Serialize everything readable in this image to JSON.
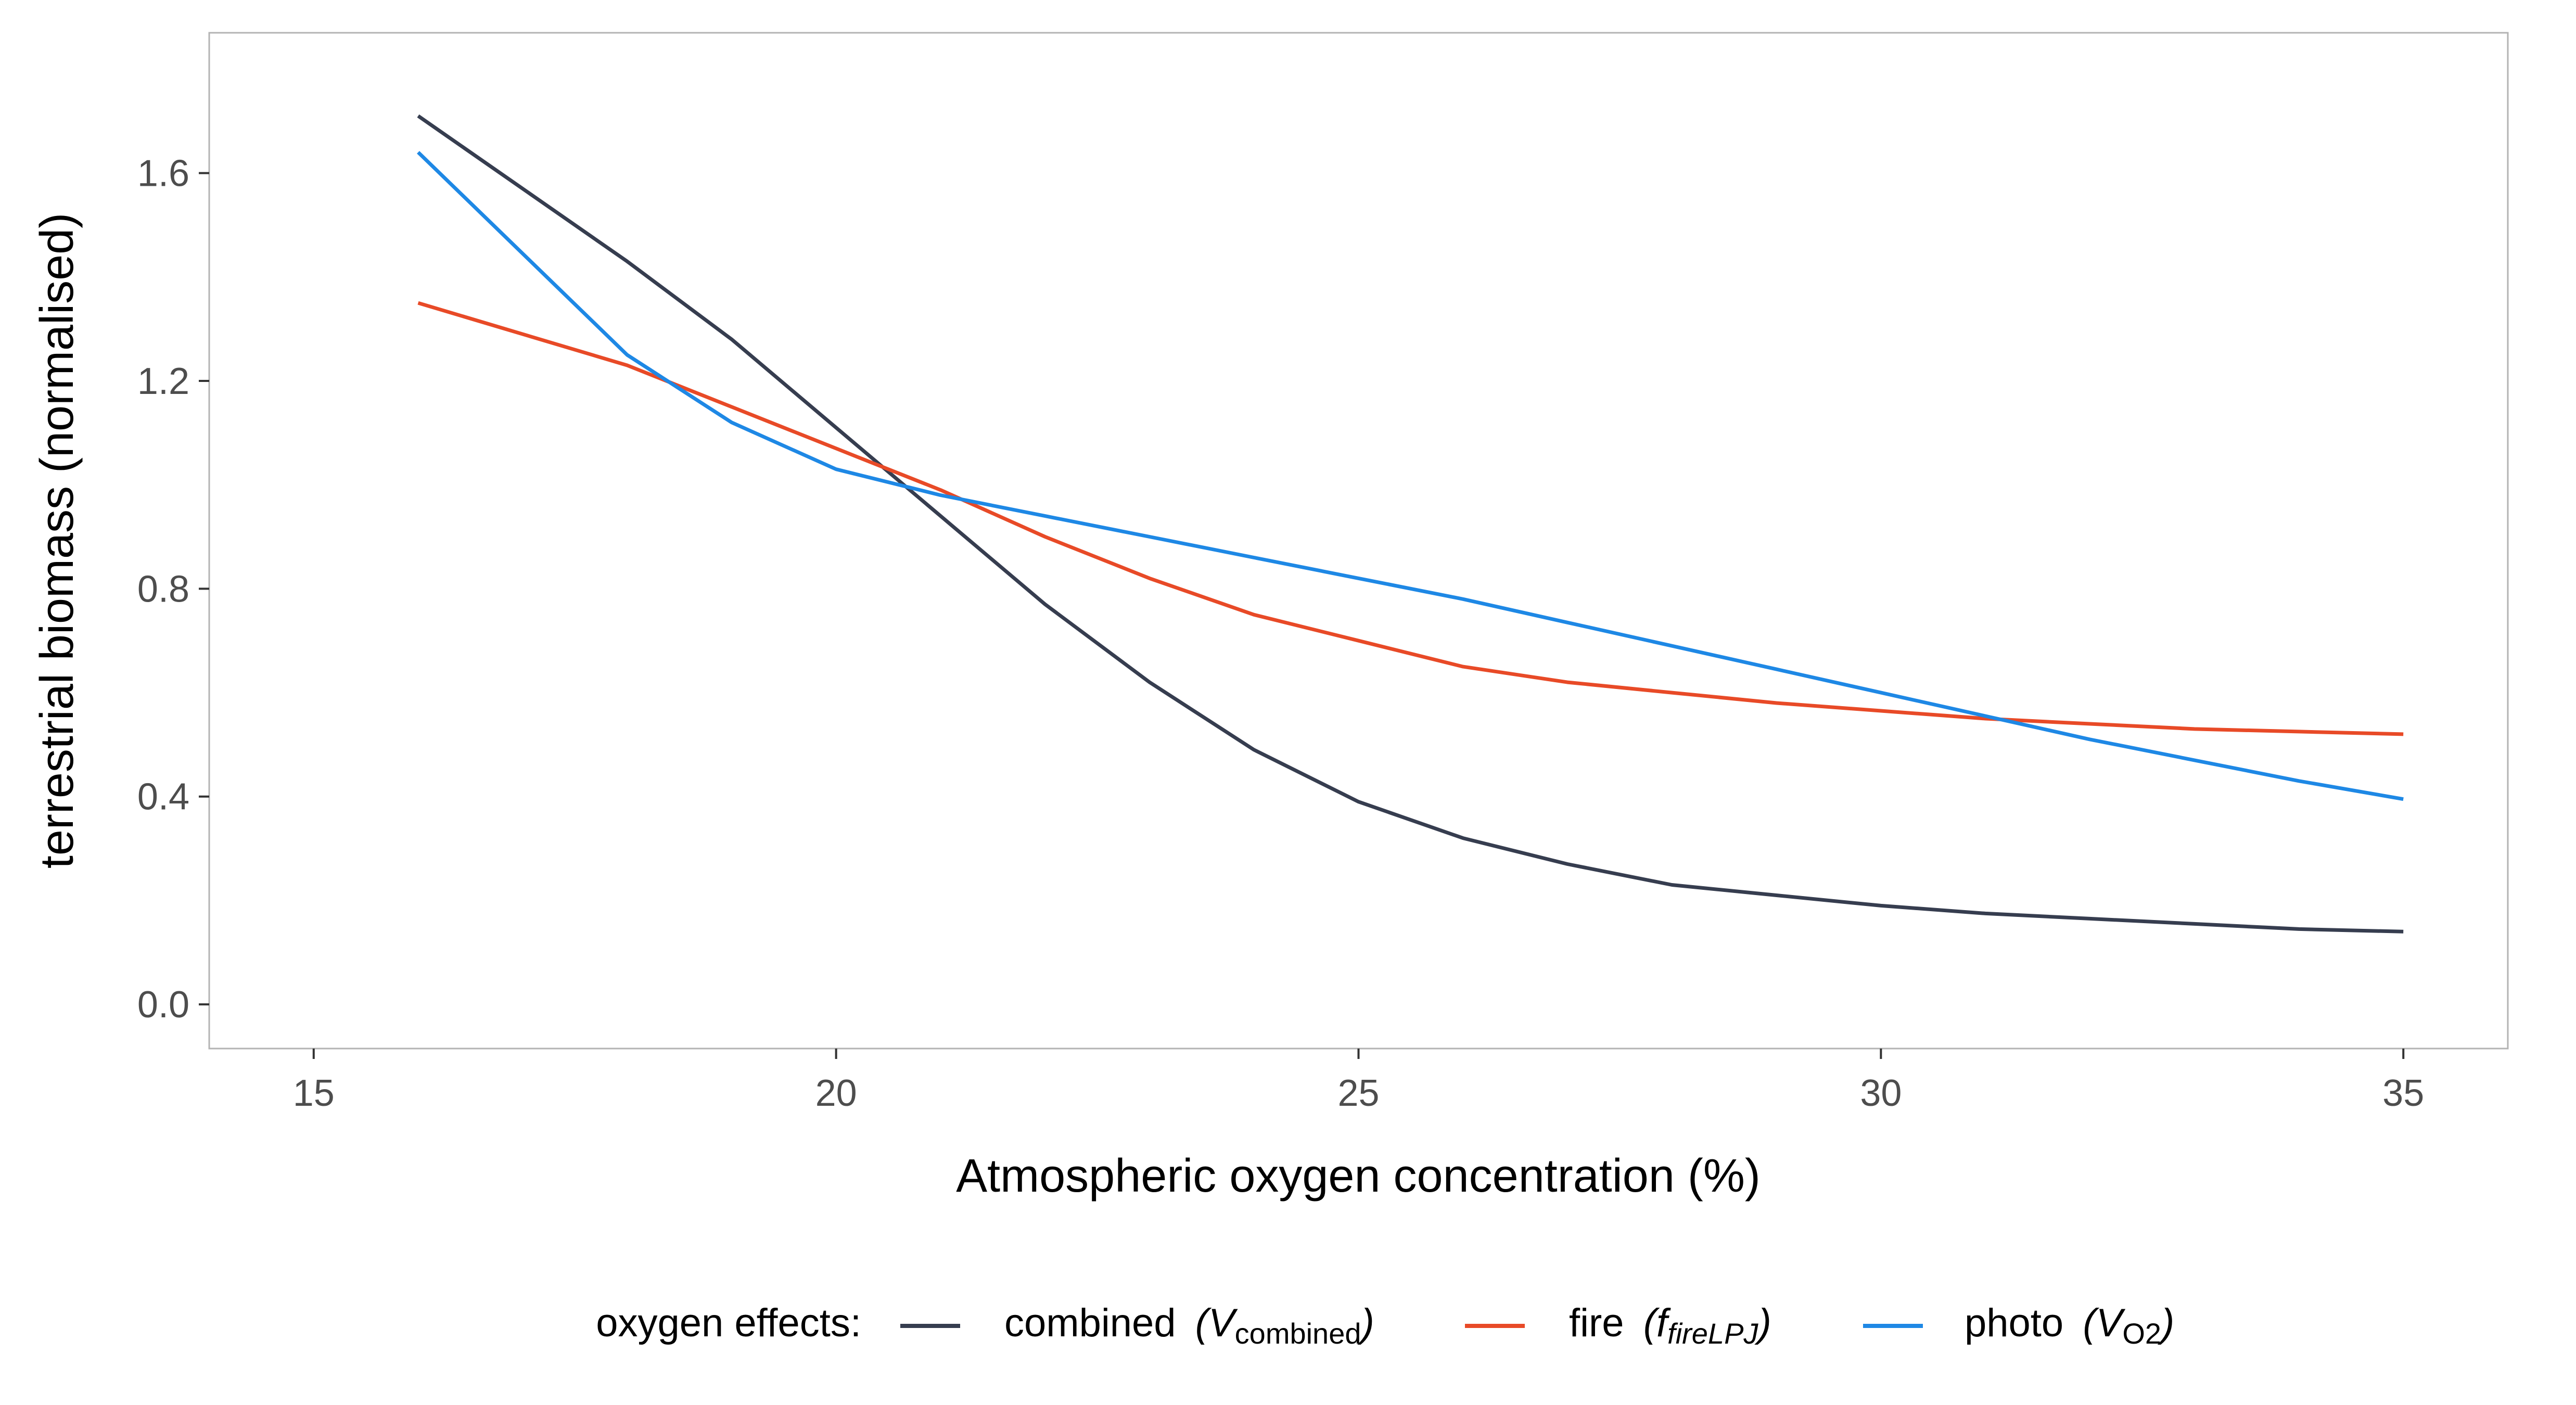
{
  "chart_data": {
    "type": "line",
    "xlabel": "Atmospheric oxygen concentration (%)",
    "ylabel": "terrestrial biomass (normalised)",
    "xlim": [
      14,
      36
    ],
    "ylim": [
      -0.085,
      1.87
    ],
    "x_ticks": [
      15,
      20,
      25,
      30,
      35
    ],
    "x_tick_labels": [
      "15",
      "20",
      "25",
      "30",
      "35"
    ],
    "y_ticks": [
      0,
      0.4,
      0.8,
      1.2,
      1.6
    ],
    "y_tick_labels": [
      "0.0",
      "0.4",
      "0.8",
      "1.2",
      "1.6"
    ],
    "grid": false,
    "legend_placement": "bottom",
    "legend_title": "oxygen effects:",
    "series": [
      {
        "name": "combined",
        "symbol": "V",
        "subscript": "combined",
        "color": "#363d4f",
        "x": [
          16,
          18,
          19,
          20,
          21,
          22,
          23,
          24,
          25,
          26,
          27,
          28,
          29,
          30,
          31,
          32,
          33,
          34,
          35
        ],
        "y": [
          1.71,
          1.43,
          1.28,
          1.11,
          0.94,
          0.77,
          0.62,
          0.49,
          0.39,
          0.32,
          0.27,
          0.23,
          0.21,
          0.19,
          0.175,
          0.165,
          0.155,
          0.145,
          0.14
        ]
      },
      {
        "name": "fire",
        "symbol": "f",
        "subscript": "fireLPJ",
        "color": "#e84a27",
        "x": [
          16,
          18,
          19,
          20,
          21,
          22,
          23,
          24,
          25,
          26,
          27,
          28,
          29,
          30,
          31,
          32,
          33,
          34,
          35
        ],
        "y": [
          1.35,
          1.23,
          1.15,
          1.07,
          0.99,
          0.9,
          0.82,
          0.75,
          0.7,
          0.65,
          0.62,
          0.6,
          0.58,
          0.565,
          0.55,
          0.54,
          0.53,
          0.525,
          0.52
        ]
      },
      {
        "name": "photo",
        "symbol": "V",
        "subscript": "O2",
        "color": "#1e88e5",
        "x": [
          16,
          18,
          19,
          20,
          21,
          22,
          23,
          24,
          25,
          26,
          27,
          28,
          29,
          30,
          31,
          32,
          33,
          34,
          35
        ],
        "y": [
          1.64,
          1.25,
          1.12,
          1.03,
          0.98,
          0.94,
          0.9,
          0.86,
          0.82,
          0.78,
          0.735,
          0.69,
          0.645,
          0.6,
          0.555,
          0.51,
          0.47,
          0.43,
          0.395
        ]
      }
    ]
  }
}
